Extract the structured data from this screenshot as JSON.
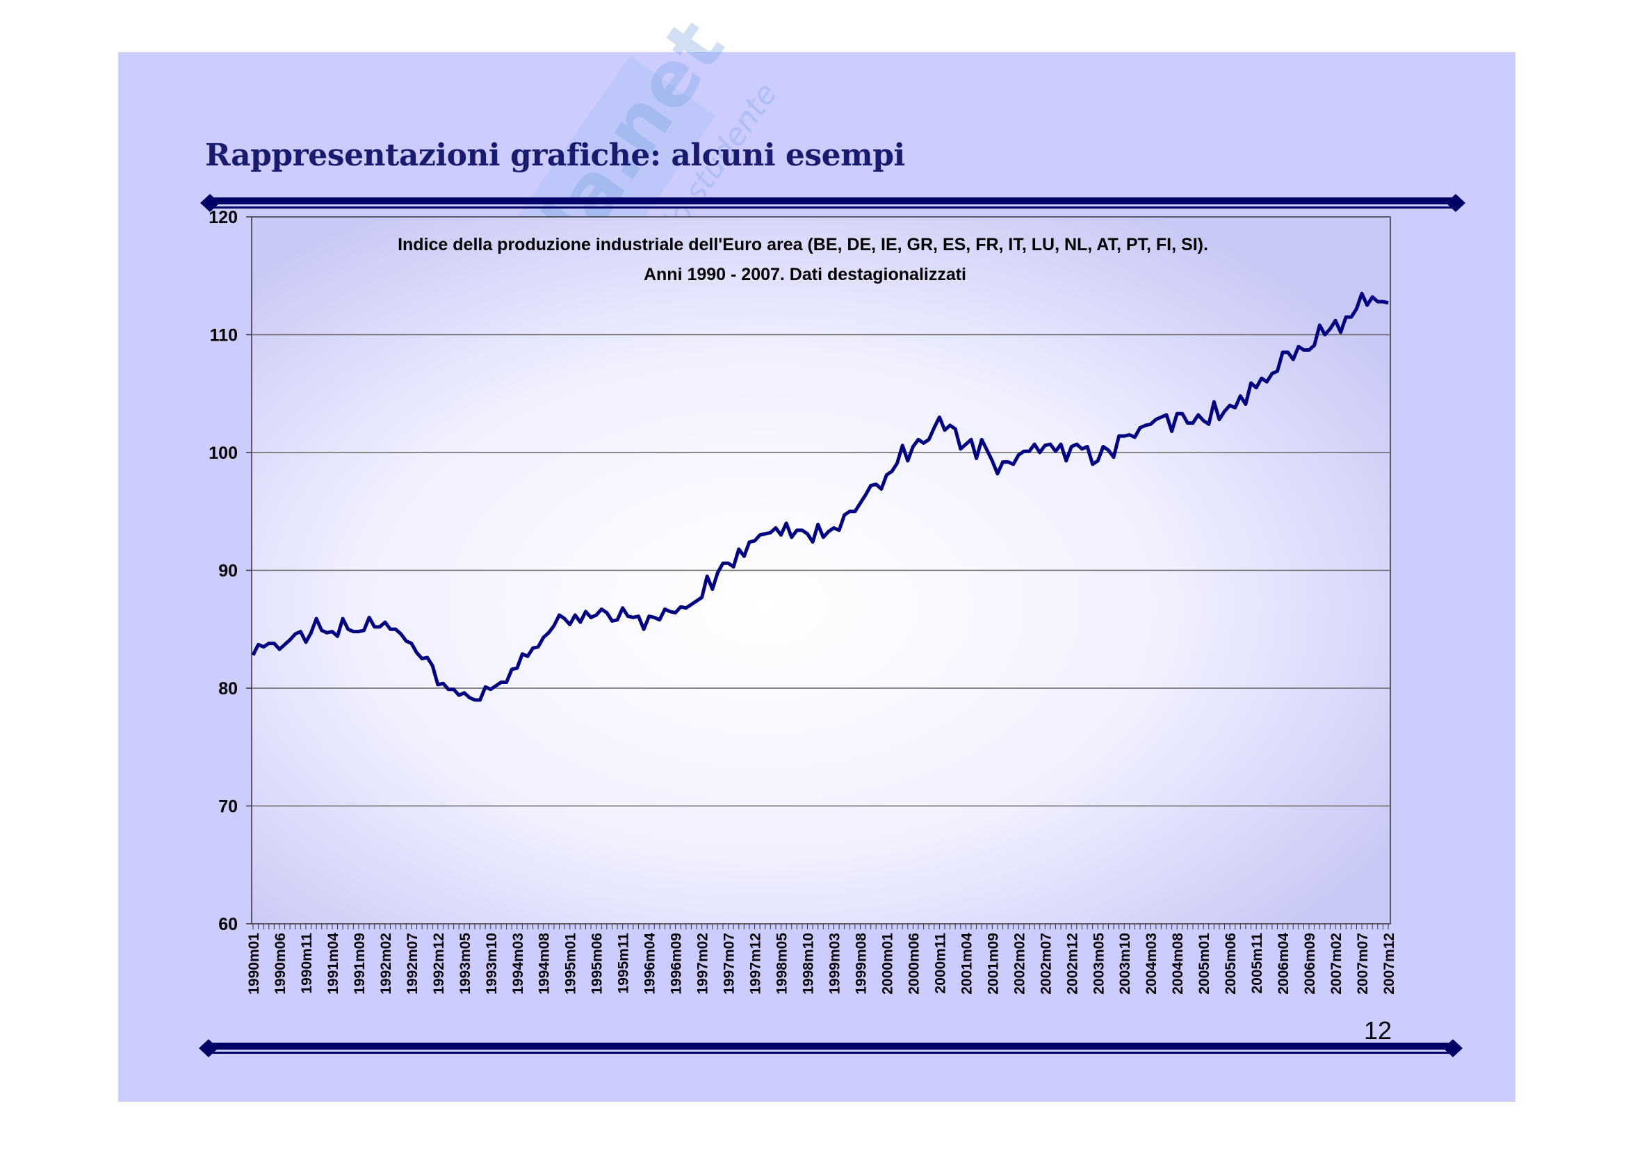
{
  "slide": {
    "title": "Rappresentazioni grafiche: alcuni esempi",
    "page_number": "12",
    "watermark": {
      "logo": "Skuola.net",
      "tagline": "il paradiso dello studente"
    },
    "colors": {
      "background": "#ccccff",
      "title": "#1a1a6e",
      "rule": "#000066",
      "line": "#000080"
    }
  },
  "chart_data": {
    "type": "line",
    "title": "Indice della produzione industriale dell'Euro area (BE, DE, IE, GR, ES, FR, IT, LU, NL, AT, PT, FI, SI).",
    "subtitle": "Anni 1990 - 2007. Dati destagionalizzati",
    "xlabel": "",
    "ylabel": "",
    "ylim": [
      60,
      120
    ],
    "yticks": [
      "60",
      "70",
      "80",
      "90",
      "100",
      "110",
      "120"
    ],
    "grid": true,
    "x_start": "1990m01",
    "x_end": "2007m12",
    "x_tick_step_months": 5,
    "xtick_labels": [
      "1990m01",
      "1990m06",
      "1990m11",
      "1991m04",
      "1991m09",
      "1992m02",
      "1992m07",
      "1992m12",
      "1993m05",
      "1993m10",
      "1994m03",
      "1994m08",
      "1995m01",
      "1995m06",
      "1995m11",
      "1996m04",
      "1996m09",
      "1997m02",
      "1997m07",
      "1997m12",
      "1998m05",
      "1998m10",
      "1999m03",
      "1999m08",
      "2000m01",
      "2000m06",
      "2000m11",
      "2001m04",
      "2001m09",
      "2002m02",
      "2002m07",
      "2002m12",
      "2003m05",
      "2003m10",
      "2004m03",
      "2004m08",
      "2005m01",
      "2005m06",
      "2005m11",
      "2006m04",
      "2006m09",
      "2007m02",
      "2007m07",
      "2007m12"
    ],
    "series": [
      {
        "name": "Indice produzione industriale",
        "values": [
          82.8,
          83.7,
          83.5,
          83.8,
          83.8,
          83.3,
          83.7,
          84.1,
          84.6,
          84.8,
          83.9,
          84.7,
          85.9,
          84.9,
          84.7,
          84.8,
          84.4,
          85.9,
          85.0,
          84.8,
          84.8,
          84.9,
          86.0,
          85.2,
          85.2,
          85.6,
          85.0,
          85.0,
          84.6,
          84.0,
          83.8,
          83.0,
          82.5,
          82.6,
          81.9,
          80.3,
          80.4,
          79.9,
          79.9,
          79.4,
          79.6,
          79.2,
          79.0,
          79.0,
          80.1,
          79.9,
          80.2,
          80.5,
          80.5,
          81.6,
          81.7,
          82.9,
          82.7,
          83.4,
          83.5,
          84.3,
          84.7,
          85.3,
          86.2,
          85.9,
          85.4,
          86.2,
          85.6,
          86.5,
          86.0,
          86.2,
          86.7,
          86.4,
          85.7,
          85.8,
          86.8,
          86.1,
          86.0,
          86.1,
          85.0,
          86.1,
          86.0,
          85.8,
          86.7,
          86.5,
          86.4,
          86.9,
          86.8,
          87.1,
          87.4,
          87.7,
          89.5,
          88.4,
          89.8,
          90.6,
          90.6,
          90.3,
          91.8,
          91.2,
          92.4,
          92.5,
          93.0,
          93.1,
          93.2,
          93.6,
          93.0,
          94.0,
          92.8,
          93.4,
          93.4,
          93.1,
          92.4,
          93.9,
          92.8,
          93.3,
          93.6,
          93.4,
          94.7,
          95.0,
          95.0,
          95.7,
          96.4,
          97.2,
          97.3,
          96.9,
          98.1,
          98.4,
          99.1,
          100.6,
          99.3,
          100.5,
          101.1,
          100.8,
          101.1,
          102.1,
          103.0,
          101.9,
          102.3,
          102.0,
          100.3,
          100.7,
          101.1,
          99.5,
          101.1,
          100.2,
          99.3,
          98.2,
          99.2,
          99.2,
          99.0,
          99.8,
          100.1,
          100.1,
          100.7,
          100.0,
          100.6,
          100.7,
          100.1,
          100.7,
          99.3,
          100.5,
          100.7,
          100.3,
          100.5,
          99.0,
          99.3,
          100.5,
          100.2,
          99.6,
          101.4,
          101.4,
          101.5,
          101.3,
          102.1,
          102.3,
          102.4,
          102.8,
          103.0,
          103.2,
          101.8,
          103.3,
          103.3,
          102.5,
          102.5,
          103.2,
          102.7,
          102.4,
          104.3,
          102.8,
          103.5,
          104.0,
          103.8,
          104.8,
          104.1,
          105.9,
          105.5,
          106.3,
          106.0,
          106.7,
          106.9,
          108.5,
          108.5,
          107.9,
          109.0,
          108.7,
          108.7,
          109.1,
          110.8,
          110.0,
          110.5,
          111.2,
          110.2,
          111.5,
          111.5,
          112.2,
          113.5,
          112.5,
          113.2,
          112.8,
          112.8,
          112.7
        ]
      }
    ]
  }
}
